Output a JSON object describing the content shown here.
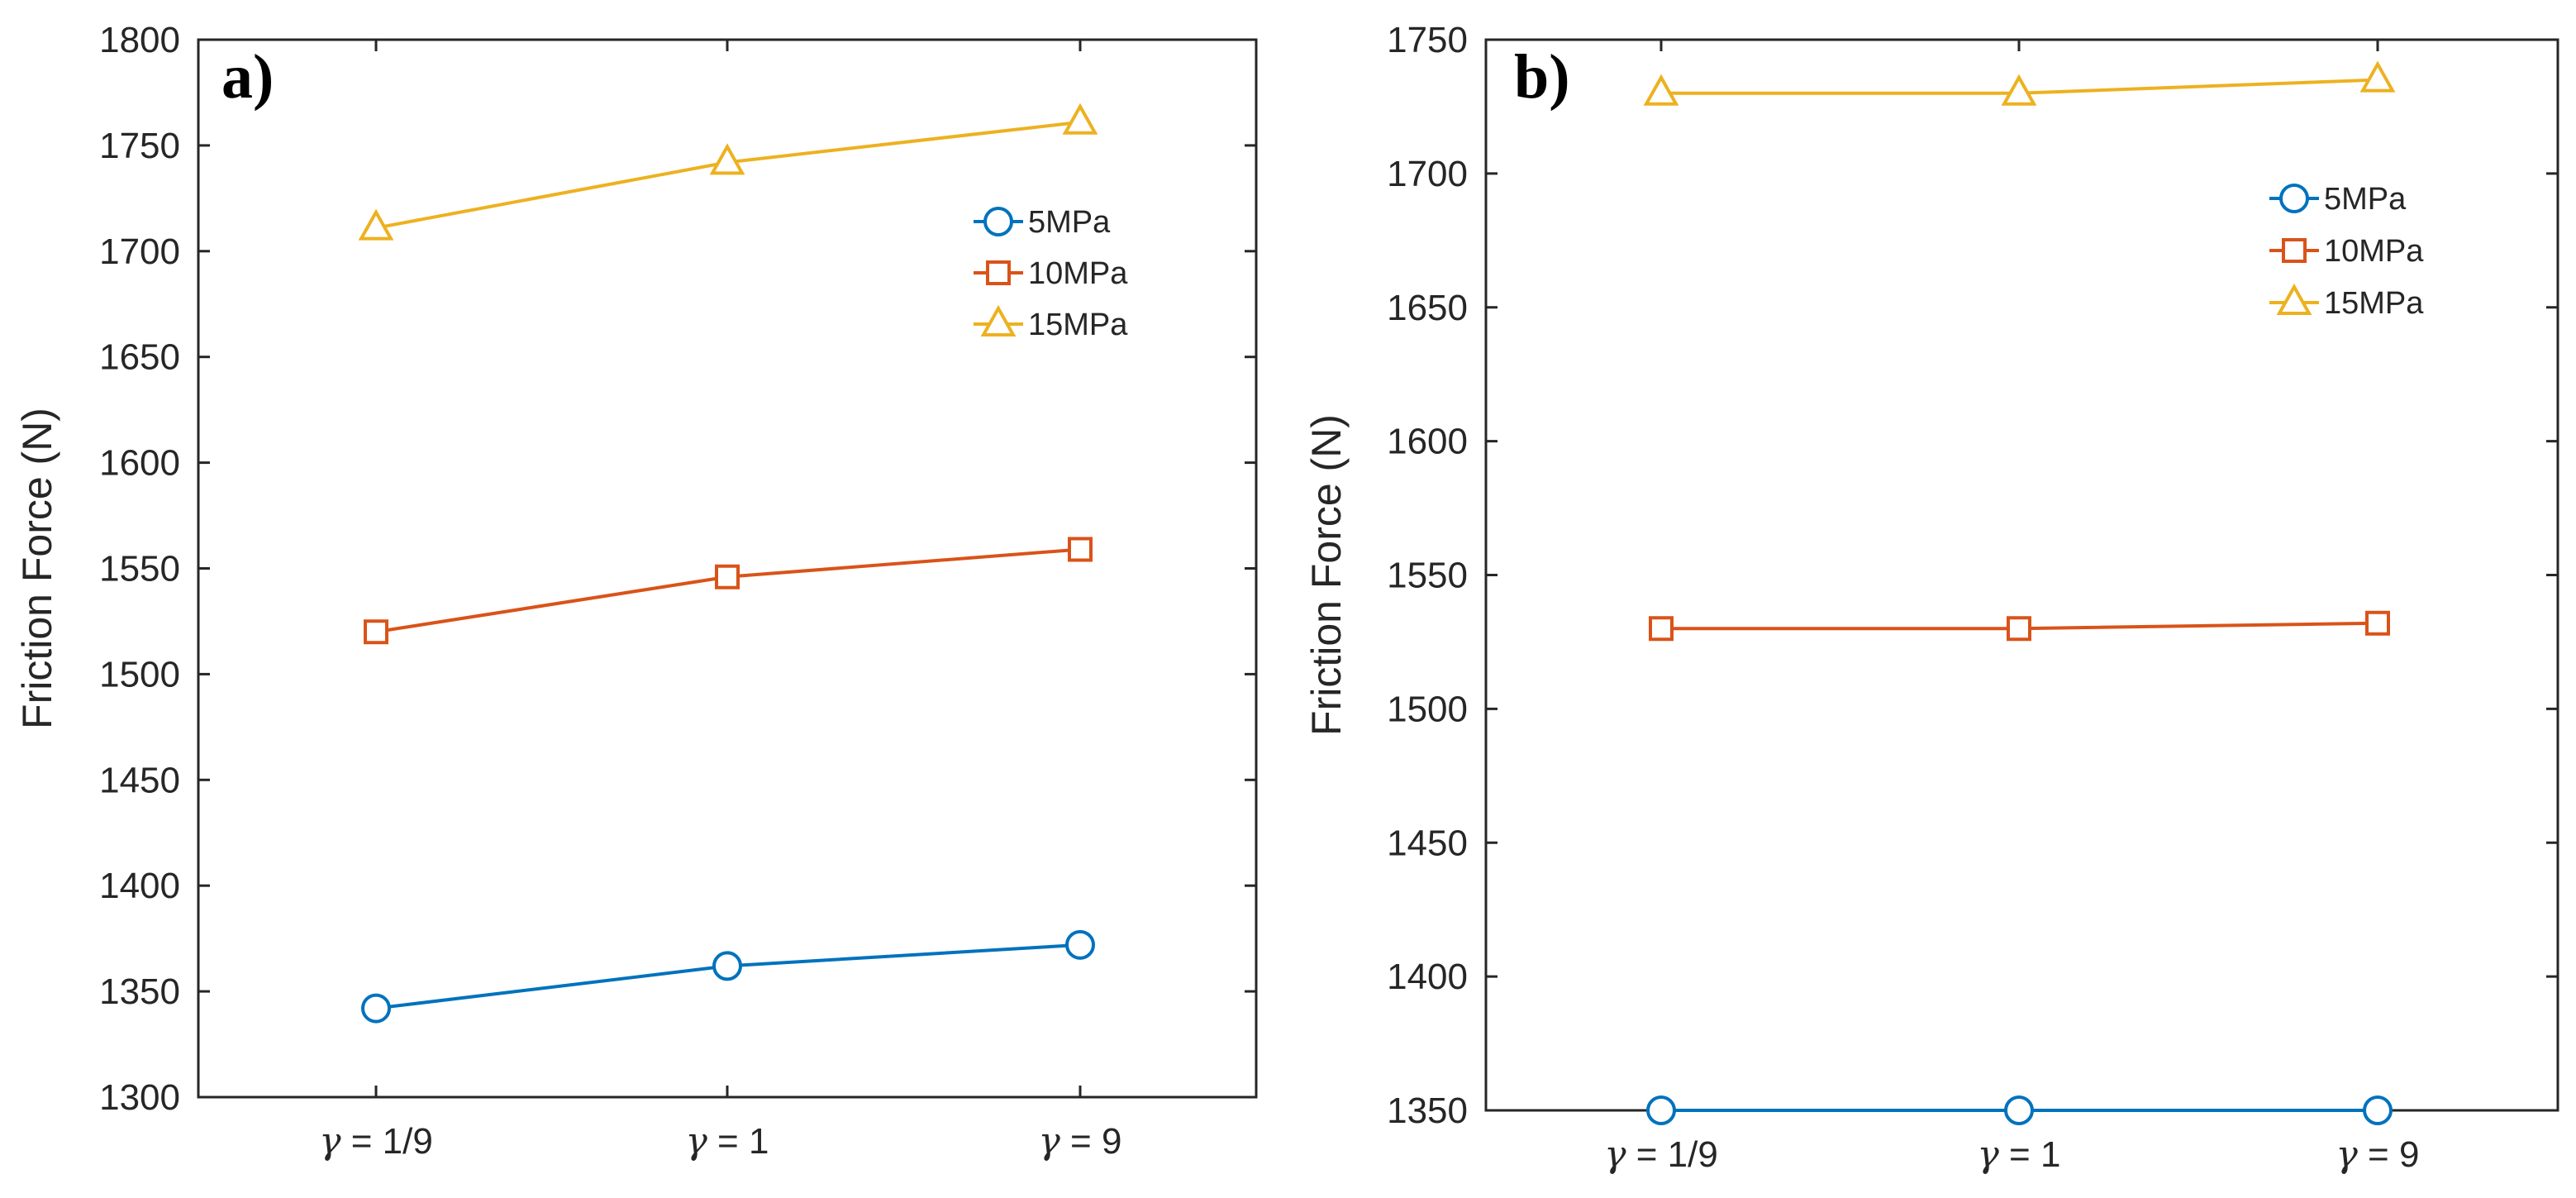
{
  "chart_data": [
    {
      "type": "line",
      "panel_label": "a)",
      "ylabel": "Friction Force (N)",
      "xlabel": "",
      "categories": [
        "γ = 1/9",
        "γ = 1",
        "γ = 9"
      ],
      "ylim": [
        1300,
        1800
      ],
      "yticks": [
        1300,
        1350,
        1400,
        1450,
        1500,
        1550,
        1600,
        1650,
        1700,
        1750,
        1800
      ],
      "grid": false,
      "legend_position": "top-right",
      "series": [
        {
          "name": "5MPa",
          "values": [
            1342,
            1362,
            1372
          ],
          "color": "#0072BD",
          "marker": "circle"
        },
        {
          "name": "10MPa",
          "values": [
            1520,
            1546,
            1559
          ],
          "color": "#D95319",
          "marker": "square"
        },
        {
          "name": "15MPa",
          "values": [
            1711,
            1742,
            1761
          ],
          "color": "#EDB120",
          "marker": "triangle"
        }
      ]
    },
    {
      "type": "line",
      "panel_label": "b)",
      "ylabel": "Friction Force (N)",
      "xlabel": "",
      "categories": [
        "γ = 1/9",
        "γ = 1",
        "γ = 9"
      ],
      "ylim": [
        1350,
        1750
      ],
      "yticks": [
        1350,
        1400,
        1450,
        1500,
        1550,
        1600,
        1650,
        1700,
        1750
      ],
      "grid": false,
      "legend_position": "top-right",
      "series": [
        {
          "name": "5MPa",
          "values": [
            1350,
            1350,
            1350
          ],
          "color": "#0072BD",
          "marker": "circle"
        },
        {
          "name": "10MPa",
          "values": [
            1530,
            1530,
            1532
          ],
          "color": "#D95319",
          "marker": "square"
        },
        {
          "name": "15MPa",
          "values": [
            1730,
            1730,
            1735
          ],
          "color": "#EDB120",
          "marker": "triangle"
        }
      ]
    }
  ]
}
